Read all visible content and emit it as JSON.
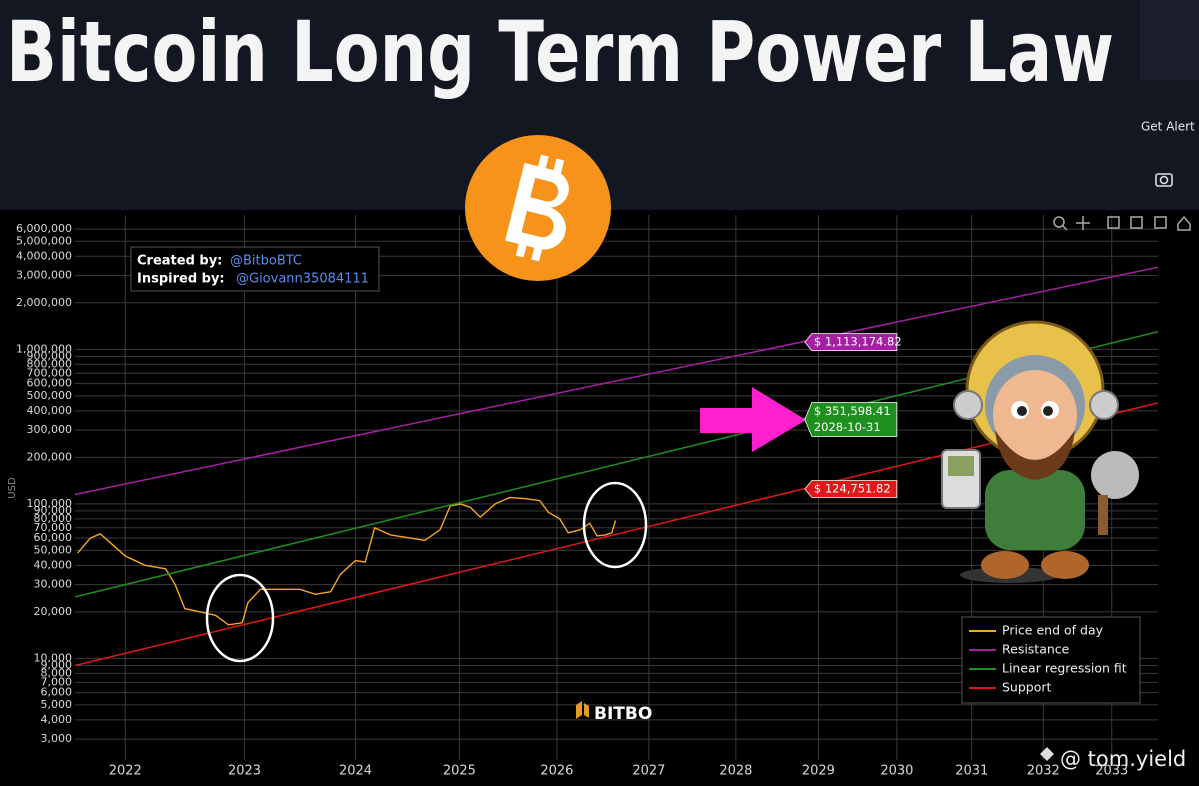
{
  "header": {
    "title": "Bitcoin Long Term Power Law",
    "button": "Get Alert"
  },
  "credits": {
    "created_label": "Created by:",
    "created_by": "@BitboBTC",
    "inspired_label": "Inspired by:",
    "inspired_by": "@Giovann35084111"
  },
  "watermark": "BITBO",
  "footer_handle": "@ tom.yield",
  "chart_data": {
    "type": "line",
    "y_label": "USD",
    "yscale": "log",
    "xscale": "log",
    "grid": true,
    "legend": "bottom-right",
    "xlim": [
      2021.6,
      2033.7
    ],
    "xticks": [
      2022,
      2023,
      2024,
      2025,
      2026,
      2027,
      2028,
      2029,
      2030,
      2031,
      2032,
      2033
    ],
    "ylim": [
      2200,
      7400000
    ],
    "yticks": [
      {
        "value": 3000,
        "label": "3,000"
      },
      {
        "value": 4000,
        "label": "4,000"
      },
      {
        "value": 5000,
        "label": "5,000"
      },
      {
        "value": 6000,
        "label": "6,000"
      },
      {
        "value": 7000,
        "label": "7,000"
      },
      {
        "value": 8000,
        "label": "8,000"
      },
      {
        "value": 9000,
        "label": "9,000"
      },
      {
        "value": 10000,
        "label": "10,000"
      },
      {
        "value": 20000,
        "label": "20,000"
      },
      {
        "value": 30000,
        "label": "30,000"
      },
      {
        "value": 40000,
        "label": "40,000"
      },
      {
        "value": 50000,
        "label": "50,000"
      },
      {
        "value": 60000,
        "label": "60,000"
      },
      {
        "value": 70000,
        "label": "70,000"
      },
      {
        "value": 80000,
        "label": "80,000"
      },
      {
        "value": 90000,
        "label": "90,000"
      },
      {
        "value": 100000,
        "label": "100,000"
      },
      {
        "value": 200000,
        "label": "200,000"
      },
      {
        "value": 300000,
        "label": "300,000"
      },
      {
        "value": 400000,
        "label": "400,000"
      },
      {
        "value": 500000,
        "label": "500,000"
      },
      {
        "value": 600000,
        "label": "600,000"
      },
      {
        "value": 700000,
        "label": "700,000"
      },
      {
        "value": 800000,
        "label": "800,000"
      },
      {
        "value": 900000,
        "label": "900,000"
      },
      {
        "value": 1000000,
        "label": "1,000,000"
      },
      {
        "value": 2000000,
        "label": "2,000,000"
      },
      {
        "value": 3000000,
        "label": "3,000,000"
      },
      {
        "value": 4000000,
        "label": "4,000,000"
      },
      {
        "value": 5000000,
        "label": "5,000,000"
      },
      {
        "value": 6000000,
        "label": "6,000,000"
      }
    ],
    "series": [
      {
        "name": "Price end of day",
        "color": "#f5a623",
        "x": [
          2021.62,
          2021.72,
          2021.8,
          2022.0,
          2022.16,
          2022.33,
          2022.41,
          2022.49,
          2022.62,
          2022.75,
          2022.86,
          2022.98,
          2023.03,
          2023.14,
          2023.31,
          2023.49,
          2023.63,
          2023.77,
          2023.86,
          2024.0,
          2024.09,
          2024.18,
          2024.33,
          2024.52,
          2024.66,
          2024.81,
          2024.91,
          2025.01,
          2025.11,
          2025.21,
          2025.36,
          2025.51,
          2025.67,
          2025.82,
          2025.91,
          2026.03,
          2026.12,
          2026.25,
          2026.35,
          2026.43,
          2026.52,
          2026.59,
          2026.63
        ],
        "values": [
          48000,
          60000,
          64000,
          46000,
          40000,
          38000,
          30000,
          21000,
          20000,
          19000,
          16500,
          17000,
          23000,
          28000,
          28000,
          28000,
          26000,
          27000,
          35000,
          43000,
          42000,
          70000,
          63000,
          60000,
          58000,
          68000,
          97000,
          100000,
          95000,
          82000,
          100000,
          110000,
          108000,
          105000,
          88000,
          80000,
          65000,
          68000,
          75000,
          62000,
          63000,
          65000,
          78000
        ]
      },
      {
        "name": "Resistance",
        "color": "#a51fa5",
        "x": [
          2021.6,
          2033.7
        ],
        "values": [
          115000,
          3400000
        ]
      },
      {
        "name": "Linear regression fit",
        "color": "#1f8f1f",
        "x": [
          2021.6,
          2033.7
        ],
        "values": [
          25000,
          1300000
        ]
      },
      {
        "name": "Support",
        "color": "#e01818",
        "x": [
          2021.6,
          2033.7
        ],
        "values": [
          9000,
          450000
        ]
      }
    ],
    "annotation_x": "2028-10-31",
    "annotations": [
      {
        "series": 1,
        "value": 1113174.82,
        "label": "$ 1,113,174.82"
      },
      {
        "series": 2,
        "value": 351598.41,
        "label": "$ 351,598.41"
      },
      {
        "series": 3,
        "value": 124751.82,
        "label": "$ 124,751.82"
      }
    ]
  }
}
